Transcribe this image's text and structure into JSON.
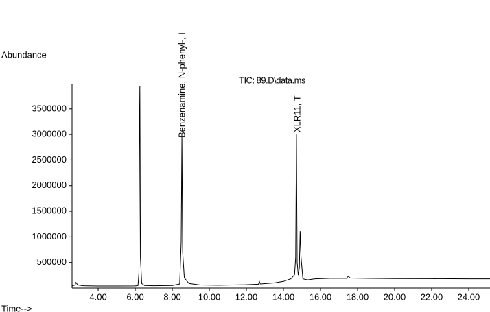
{
  "chart_data": {
    "type": "line",
    "title": "TIC: 89.D\\data.ms",
    "y_label": "Abundance",
    "x_label": "Time-->",
    "annotations": [
      "Benzenamine, N-phenyl-, I",
      "XLR11, T"
    ],
    "x": [
      2.59,
      2.75,
      2.8,
      2.9,
      3.2,
      4.0,
      5.0,
      6.0,
      6.15,
      6.2,
      6.22,
      6.25,
      6.28,
      6.35,
      6.5,
      7.0,
      8.0,
      8.4,
      8.48,
      8.52,
      8.56,
      8.65,
      8.9,
      9.5,
      10.5,
      12.0,
      12.65,
      12.7,
      12.75,
      13.5,
      14.0,
      14.4,
      14.6,
      14.66,
      14.7,
      14.74,
      14.8,
      14.86,
      14.9,
      14.95,
      15.05,
      15.3,
      15.7,
      16.5,
      17.4,
      17.5,
      17.6,
      18.5,
      20.0,
      22.0,
      24.0,
      25.15
    ],
    "series": [
      {
        "name": "TIC",
        "color": "#000000",
        "values": [
          40000,
          60000,
          110000,
          60000,
          45000,
          40000,
          40000,
          42000,
          50000,
          300000,
          2750000,
          3950000,
          600000,
          90000,
          50000,
          45000,
          50000,
          80000,
          900000,
          2950000,
          700000,
          200000,
          90000,
          60000,
          55000,
          65000,
          75000,
          130000,
          80000,
          100000,
          130000,
          180000,
          260000,
          600000,
          3000000,
          500000,
          250000,
          400000,
          1110000,
          600000,
          180000,
          160000,
          180000,
          190000,
          190000,
          230000,
          195000,
          190000,
          185000,
          182000,
          180000,
          180000
        ]
      }
    ],
    "xlim": [
      2.59,
      25.15
    ],
    "ylim": [
      0,
      3980000
    ],
    "xticks": [
      {
        "value": 4,
        "label": "4.00"
      },
      {
        "value": 6,
        "label": "6.00"
      },
      {
        "value": 8,
        "label": "8.00"
      },
      {
        "value": 10,
        "label": "10.00"
      },
      {
        "value": 12,
        "label": "12.00"
      },
      {
        "value": 14,
        "label": "14.00"
      },
      {
        "value": 16,
        "label": "16.00"
      },
      {
        "value": 18,
        "label": "18.00"
      },
      {
        "value": 20,
        "label": "20.00"
      },
      {
        "value": 22,
        "label": "22.00"
      },
      {
        "value": 24,
        "label": "24.00"
      }
    ],
    "yticks": [
      500000,
      1000000,
      1500000,
      2000000,
      2500000,
      3000000,
      3500000
    ],
    "grid": false
  }
}
